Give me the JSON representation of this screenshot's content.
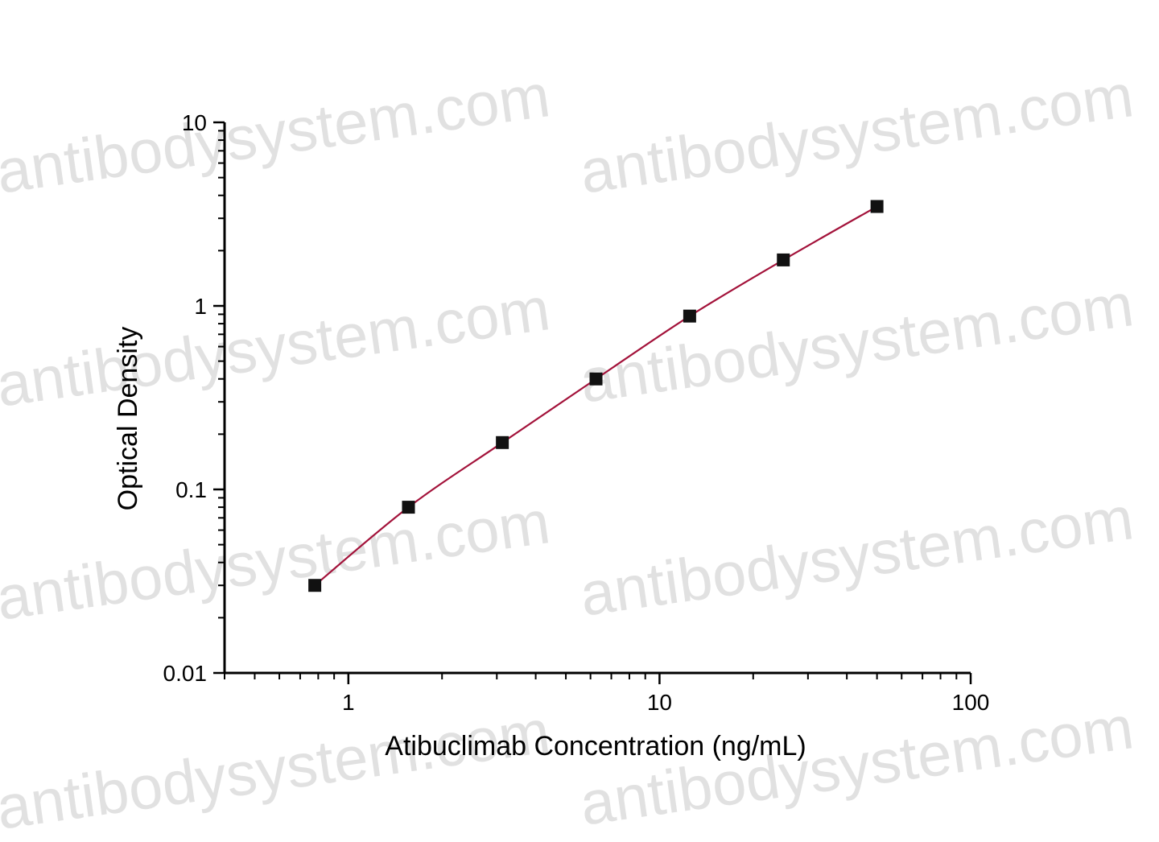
{
  "watermark": {
    "text": "antibodysystem.com",
    "color": "#c9c9c9"
  },
  "chart_data": {
    "type": "scatter",
    "xlabel": "Atibuclimab Concentration (ng/mL)",
    "ylabel": "Optical Density",
    "x_scale": "log",
    "y_scale": "log",
    "xlim": [
      0.4,
      100
    ],
    "ylim": [
      0.01,
      10
    ],
    "x_ticks": [
      {
        "value": 1,
        "label": "1"
      },
      {
        "value": 10,
        "label": "10"
      },
      {
        "value": 100,
        "label": "100"
      }
    ],
    "y_ticks": [
      {
        "value": 0.01,
        "label": "0.01"
      },
      {
        "value": 0.1,
        "label": "0.1"
      },
      {
        "value": 1,
        "label": "1"
      },
      {
        "value": 10,
        "label": "10"
      }
    ],
    "grid": false,
    "legend": "none",
    "series": [
      {
        "marker": "square",
        "marker_color": "#111111",
        "fit_line_color": "#a3123a",
        "x": [
          0.78,
          1.56,
          3.125,
          6.25,
          12.5,
          25,
          50
        ],
        "y": [
          0.03,
          0.08,
          0.18,
          0.4,
          0.88,
          1.78,
          3.48
        ]
      }
    ]
  }
}
